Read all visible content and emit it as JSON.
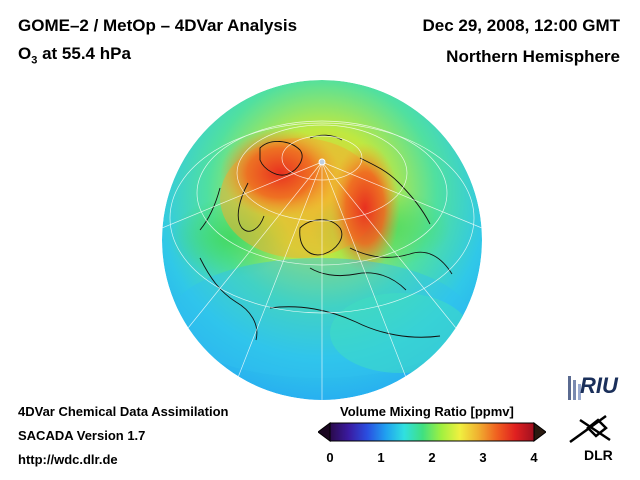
{
  "header": {
    "title": "GOME–2 / MetOp – 4DVar Analysis",
    "species_prefix": "O",
    "species_sub": "3",
    "species_suffix": " at 55.4 hPa",
    "date": "Dec 29, 2008, 12:00 GMT",
    "hemisphere": "Northern Hemisphere"
  },
  "footer": {
    "line1": "4DVar Chemical Data Assimilation",
    "line2": "SACADA Version 1.7",
    "line3": "http://wdc.dlr.de"
  },
  "colorbar": {
    "title": "Volume Mixing Ratio [ppmv]",
    "ticks": [
      "0",
      "1",
      "2",
      "3",
      "4"
    ],
    "range": [
      0,
      4
    ],
    "colors": [
      "#2a0a4a",
      "#3a1aa0",
      "#2a4ee0",
      "#20a0f0",
      "#30e0e0",
      "#40e080",
      "#a0f040",
      "#f0f040",
      "#f0b030",
      "#f06020",
      "#e02020",
      "#a01020"
    ]
  },
  "logos": {
    "riu": "RIU",
    "dlr": "DLR"
  }
}
